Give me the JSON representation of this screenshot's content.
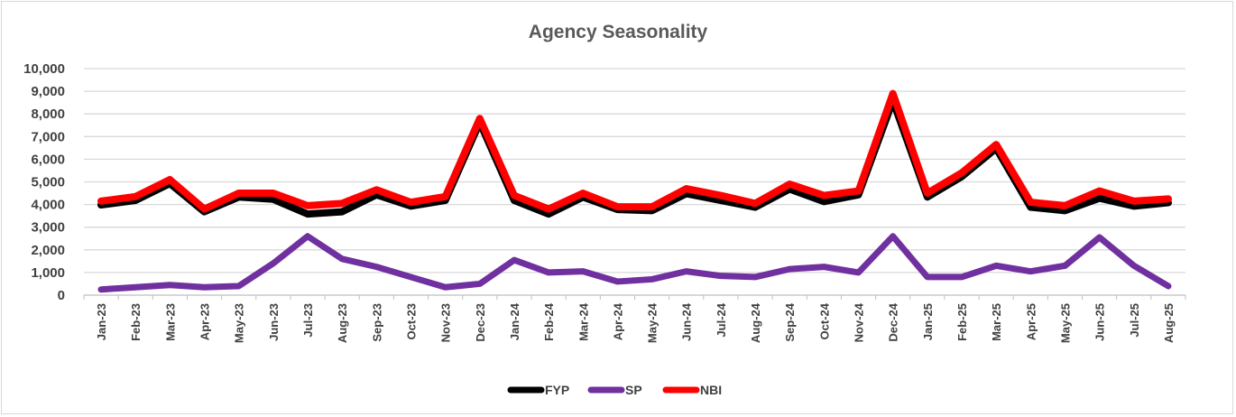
{
  "chart_data": {
    "type": "line",
    "title": "Agency Seasonality",
    "xlabel": "",
    "ylabel": "",
    "ylim": [
      0,
      10000
    ],
    "yticks": [
      "0",
      "1,000",
      "2,000",
      "3,000",
      "4,000",
      "5,000",
      "6,000",
      "7,000",
      "8,000",
      "9,000",
      "10,000"
    ],
    "ytick_values": [
      0,
      1000,
      2000,
      3000,
      4000,
      5000,
      6000,
      7000,
      8000,
      9000,
      10000
    ],
    "grid": true,
    "legend_position": "bottom",
    "categories": [
      "Jan-23",
      "Feb-23",
      "Mar-23",
      "Apr-23",
      "May-23",
      "Jun-23",
      "Jul-23",
      "Aug-23",
      "Sep-23",
      "Oct-23",
      "Nov-23",
      "Dec-23",
      "Jan-24",
      "Feb-24",
      "Mar-24",
      "Apr-24",
      "May-24",
      "Jun-24",
      "Jul-24",
      "Aug-24",
      "Sep-24",
      "Oct-24",
      "Nov-24",
      "Dec-24",
      "Jan-25",
      "Feb-25",
      "Mar-25",
      "Apr-25",
      "May-25",
      "Jun-25",
      "Jul-25",
      "Aug-25"
    ],
    "series": [
      {
        "name": "FYP",
        "color": "#000000",
        "values": [
          4100,
          4300,
          5050,
          3800,
          4450,
          4350,
          3700,
          3800,
          4550,
          4050,
          4300,
          7750,
          4300,
          3700,
          4450,
          3900,
          3850,
          4600,
          4300,
          4000,
          4800,
          4250,
          4550,
          8700,
          4450,
          5350,
          6600,
          4000,
          3850,
          4400,
          4050,
          4200
        ]
      },
      {
        "name": "SP",
        "color": "#7030a0",
        "values": [
          250,
          350,
          450,
          350,
          400,
          1400,
          2600,
          1600,
          1250,
          800,
          350,
          500,
          1550,
          1000,
          1050,
          600,
          700,
          1050,
          850,
          800,
          1150,
          1250,
          1000,
          2600,
          800,
          800,
          1300,
          1050,
          1300,
          2550,
          1300,
          400
        ]
      },
      {
        "name": "NBI",
        "color": "#ff0000",
        "values": [
          4150,
          4350,
          5100,
          3800,
          4500,
          4500,
          3950,
          4050,
          4650,
          4100,
          4350,
          7800,
          4400,
          3800,
          4500,
          3900,
          3900,
          4700,
          4400,
          4050,
          4900,
          4400,
          4600,
          8900,
          4500,
          5400,
          6650,
          4100,
          3950,
          4600,
          4150,
          4250
        ]
      }
    ]
  }
}
